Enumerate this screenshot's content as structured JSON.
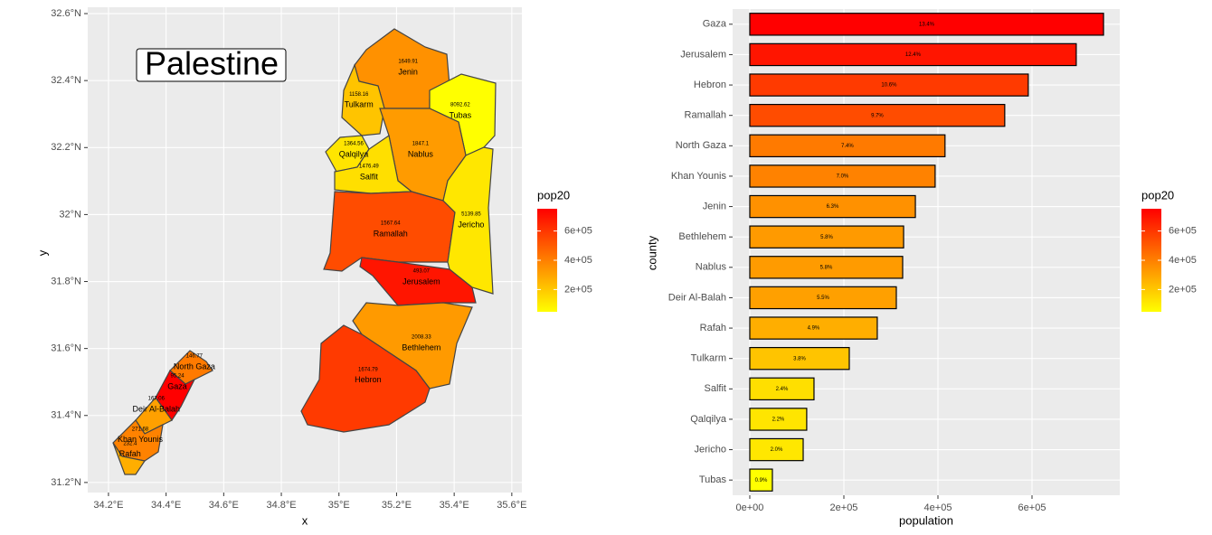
{
  "chart_data": [
    {
      "type": "map",
      "title": "Palestine",
      "x_label": "x",
      "y_label": "y",
      "xlim": [
        34.128,
        35.635
      ],
      "ylim": [
        31.17,
        32.619
      ],
      "xticks": [
        {
          "value": 34.2,
          "label": "34.2°E"
        },
        {
          "value": 34.4,
          "label": "34.4°E"
        },
        {
          "value": 34.6,
          "label": "34.6°E"
        },
        {
          "value": 34.8,
          "label": "34.8°E"
        },
        {
          "value": 35,
          "label": "35°E"
        },
        {
          "value": 35.2,
          "label": "35.2°E"
        },
        {
          "value": 35.4,
          "label": "35.4°E"
        },
        {
          "value": 35.6,
          "label": "35.6°E"
        }
      ],
      "yticks": [
        {
          "value": 31.2,
          "label": "31.2°N"
        },
        {
          "value": 31.4,
          "label": "31.4°N"
        },
        {
          "value": 31.6,
          "label": "31.6°N"
        },
        {
          "value": 31.8,
          "label": "31.8°N"
        },
        {
          "value": 32,
          "label": "32°N"
        },
        {
          "value": 32.2,
          "label": "32.2°N"
        },
        {
          "value": 32.4,
          "label": "32.4°N"
        },
        {
          "value": 32.6,
          "label": "32.6°N"
        }
      ],
      "grid": true,
      "colors": [
        "#ffff00",
        "#ff0000"
      ],
      "regions": [
        {
          "name": "Jenin",
          "area": 1649.91,
          "pop20": 352000,
          "lon": 35.24,
          "lat": 32.425
        },
        {
          "name": "Tubas",
          "area": 8092.62,
          "pop20": 48000,
          "lon": 35.421,
          "lat": 32.295
        },
        {
          "name": "Tulkarm",
          "area": 1158.16,
          "pop20": 211500,
          "lon": 35.069,
          "lat": 32.327
        },
        {
          "name": "Qalqilya",
          "area": 1364.56,
          "pop20": 121000,
          "lon": 35.051,
          "lat": 32.179
        },
        {
          "name": "Nablus",
          "area": 1847.1,
          "pop20": 325000,
          "lon": 35.283,
          "lat": 32.179
        },
        {
          "name": "Salfit",
          "area": 1476.49,
          "pop20": 136500,
          "lon": 35.104,
          "lat": 32.112
        },
        {
          "name": "Ramallah",
          "area": 1567.64,
          "pop20": 542000,
          "lon": 35.179,
          "lat": 31.942
        },
        {
          "name": "Jericho",
          "area": 5139.85,
          "pop20": 113500,
          "lon": 35.459,
          "lat": 31.969
        },
        {
          "name": "Jerusalem",
          "area": 493.07,
          "pop20": 694000,
          "lon": 35.286,
          "lat": 31.799
        },
        {
          "name": "Bethlehem",
          "area": 2008.33,
          "pop20": 327000,
          "lon": 35.286,
          "lat": 31.602
        },
        {
          "name": "Hebron",
          "area": 1674.79,
          "pop20": 592000,
          "lon": 35.101,
          "lat": 31.505
        },
        {
          "name": "North Gaza",
          "area": 146.77,
          "pop20": 415000,
          "lon": 34.498,
          "lat": 31.545
        },
        {
          "name": "Gaza",
          "area": 95.24,
          "pop20": 752000,
          "lon": 34.439,
          "lat": 31.486
        },
        {
          "name": "Deir Al-Balah",
          "area": 167.06,
          "pop20": 311500,
          "lon": 34.366,
          "lat": 31.418
        },
        {
          "name": "Khan Younis",
          "area": 271.68,
          "pop20": 394000,
          "lon": 34.31,
          "lat": 31.327
        },
        {
          "name": "Rafah",
          "area": 232.4,
          "pop20": 271000,
          "lon": 34.275,
          "lat": 31.284
        }
      ],
      "legend": {
        "title": "pop20",
        "ticks": [
          {
            "value": 200000,
            "label": "2e+05"
          },
          {
            "value": 400000,
            "label": "4e+05"
          },
          {
            "value": 600000,
            "label": "6e+05"
          }
        ]
      }
    },
    {
      "type": "bar",
      "orientation": "horizontal",
      "x_label": "population",
      "y_label": "county",
      "categories": [
        "Gaza",
        "Jerusalem",
        "Hebron",
        "Ramallah",
        "North Gaza",
        "Khan Younis",
        "Jenin",
        "Bethlehem",
        "Nablus",
        "Deir Al-Balah",
        "Rafah",
        "Tulkarm",
        "Salfit",
        "Qalqilya",
        "Jericho",
        "Tubas"
      ],
      "values": [
        752000,
        694000,
        592000,
        542000,
        415000,
        394000,
        352000,
        327000,
        325000,
        311500,
        271000,
        211500,
        136500,
        121000,
        113500,
        48000
      ],
      "labels": [
        "13.4%",
        "12.4%",
        "10.6%",
        "9.7%",
        "7.4%",
        "7.0%",
        "6.3%",
        "5.8%",
        "5.8%",
        "5.5%",
        "4.9%",
        "3.8%",
        "2.4%",
        "2.2%",
        "2.0%",
        "0.9%"
      ],
      "xlim": [
        -36500,
        786500
      ],
      "xticks": [
        {
          "value": 0,
          "label": "0e+00"
        },
        {
          "value": 200000,
          "label": "2e+05"
        },
        {
          "value": 400000,
          "label": "4e+05"
        },
        {
          "value": 600000,
          "label": "6e+05"
        }
      ],
      "grid": true,
      "colors": [
        "#ffff00",
        "#ff0000"
      ],
      "legend": {
        "title": "pop20",
        "ticks": [
          {
            "value": 200000,
            "label": "2e+05"
          },
          {
            "value": 400000,
            "label": "4e+05"
          },
          {
            "value": 600000,
            "label": "6e+05"
          }
        ]
      }
    }
  ]
}
